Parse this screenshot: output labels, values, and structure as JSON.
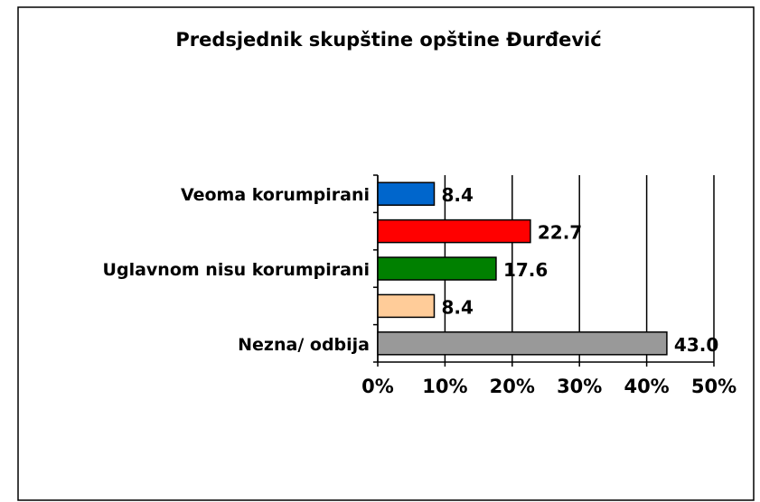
{
  "chart_data": {
    "type": "bar",
    "orientation": "horizontal",
    "title": "Predsjednik skupštine opštine Đurđević",
    "categories": [
      "Veoma korumpirani",
      null,
      "Uglavnom nisu korumpirani",
      null,
      "Nezna/ odbija"
    ],
    "values": [
      8.4,
      22.7,
      17.6,
      8.4,
      43.0
    ],
    "value_labels": [
      "8.4",
      "22.7",
      "17.6",
      "8.4",
      "43.0"
    ],
    "colors": [
      "#0066cc",
      "#ff0000",
      "#008000",
      "#ffcc99",
      "#999999"
    ],
    "xlim": [
      0,
      50
    ],
    "xticks": [
      {
        "value": 0,
        "label": "0%"
      },
      {
        "value": 10,
        "label": "10%"
      },
      {
        "value": 20,
        "label": "20%"
      },
      {
        "value": 30,
        "label": "30%"
      },
      {
        "value": 40,
        "label": "40%"
      },
      {
        "value": 50,
        "label": "50%"
      }
    ],
    "grid": true
  }
}
